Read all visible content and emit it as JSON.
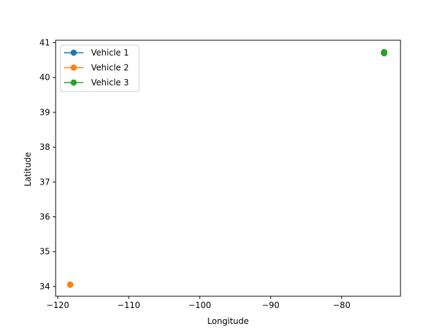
{
  "chart_data": {
    "type": "line",
    "title": "",
    "xlabel": "Longitude",
    "ylabel": "Latitude",
    "xlim": [
      -120.3,
      -71.7
    ],
    "ylim": [
      33.72,
      41.07
    ],
    "xticks": [
      -120,
      -110,
      -100,
      -90,
      -80
    ],
    "xtick_labels": [
      "−120",
      "−110",
      "−100",
      "−90",
      "−80"
    ],
    "yticks": [
      34,
      35,
      36,
      37,
      38,
      39,
      40,
      41
    ],
    "ytick_labels": [
      "34",
      "35",
      "36",
      "37",
      "38",
      "39",
      "40",
      "41"
    ],
    "grid": false,
    "legend_position": "upper-left",
    "series": [
      {
        "name": "Vehicle 1",
        "color": "#1f77b4",
        "marker": "circle",
        "x": [
          -74.006,
          -74.004,
          -74.002
        ],
        "y": [
          40.7128,
          40.7135,
          40.7142
        ]
      },
      {
        "name": "Vehicle 2",
        "color": "#ff7f0e",
        "marker": "circle",
        "x": [
          -118.2437,
          -118.243
        ],
        "y": [
          34.0522,
          34.053
        ]
      },
      {
        "name": "Vehicle 3",
        "color": "#2ca02c",
        "marker": "circle",
        "x": [
          -74.0059,
          -74.0055,
          -74.005
        ],
        "y": [
          40.7306,
          40.71,
          40.695
        ]
      }
    ]
  }
}
